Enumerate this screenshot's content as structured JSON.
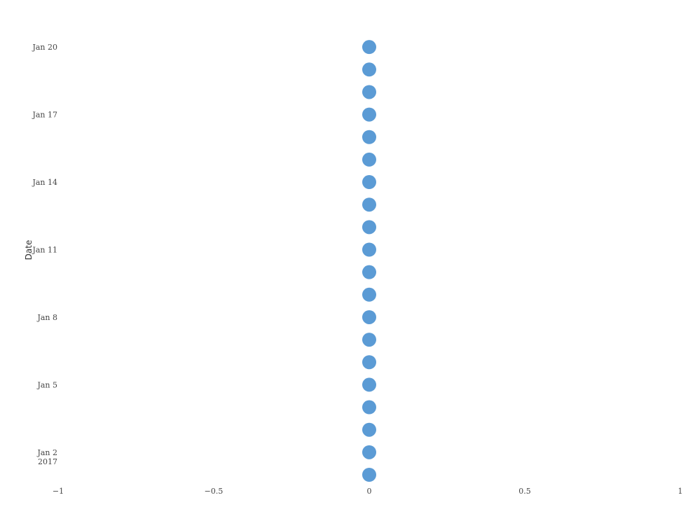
{
  "chart_data": {
    "type": "scatter",
    "title": "",
    "xlabel": "",
    "ylabel": "Date",
    "xlim": [
      -1,
      1
    ],
    "ylim": [
      "2017-01-01",
      "2017-01-21"
    ],
    "grid": false,
    "marker_color": "#5b9bd5",
    "x_ticks": [
      {
        "value": -1,
        "label": "−1"
      },
      {
        "value": -0.5,
        "label": "−0.5"
      },
      {
        "value": 0,
        "label": "0"
      },
      {
        "value": 0.5,
        "label": "0.5"
      },
      {
        "value": 1,
        "label": "1"
      }
    ],
    "y_ticks": [
      {
        "date": "2017-01-02",
        "label": "Jan 2",
        "sublabel": "2017"
      },
      {
        "date": "2017-01-05",
        "label": "Jan 5",
        "sublabel": ""
      },
      {
        "date": "2017-01-08",
        "label": "Jan 8",
        "sublabel": ""
      },
      {
        "date": "2017-01-11",
        "label": "Jan 11",
        "sublabel": ""
      },
      {
        "date": "2017-01-14",
        "label": "Jan 14",
        "sublabel": ""
      },
      {
        "date": "2017-01-17",
        "label": "Jan 17",
        "sublabel": ""
      },
      {
        "date": "2017-01-20",
        "label": "Jan 20",
        "sublabel": ""
      }
    ],
    "series": [
      {
        "points": [
          {
            "x": 0,
            "y": "2017-01-01"
          },
          {
            "x": 0,
            "y": "2017-01-02"
          },
          {
            "x": 0,
            "y": "2017-01-03"
          },
          {
            "x": 0,
            "y": "2017-01-04"
          },
          {
            "x": 0,
            "y": "2017-01-05"
          },
          {
            "x": 0,
            "y": "2017-01-06"
          },
          {
            "x": 0,
            "y": "2017-01-07"
          },
          {
            "x": 0,
            "y": "2017-01-08"
          },
          {
            "x": 0,
            "y": "2017-01-09"
          },
          {
            "x": 0,
            "y": "2017-01-10"
          },
          {
            "x": 0,
            "y": "2017-01-11"
          },
          {
            "x": 0,
            "y": "2017-01-12"
          },
          {
            "x": 0,
            "y": "2017-01-13"
          },
          {
            "x": 0,
            "y": "2017-01-14"
          },
          {
            "x": 0,
            "y": "2017-01-15"
          },
          {
            "x": 0,
            "y": "2017-01-16"
          },
          {
            "x": 0,
            "y": "2017-01-17"
          },
          {
            "x": 0,
            "y": "2017-01-18"
          },
          {
            "x": 0,
            "y": "2017-01-19"
          },
          {
            "x": 0,
            "y": "2017-01-20"
          }
        ]
      }
    ]
  }
}
